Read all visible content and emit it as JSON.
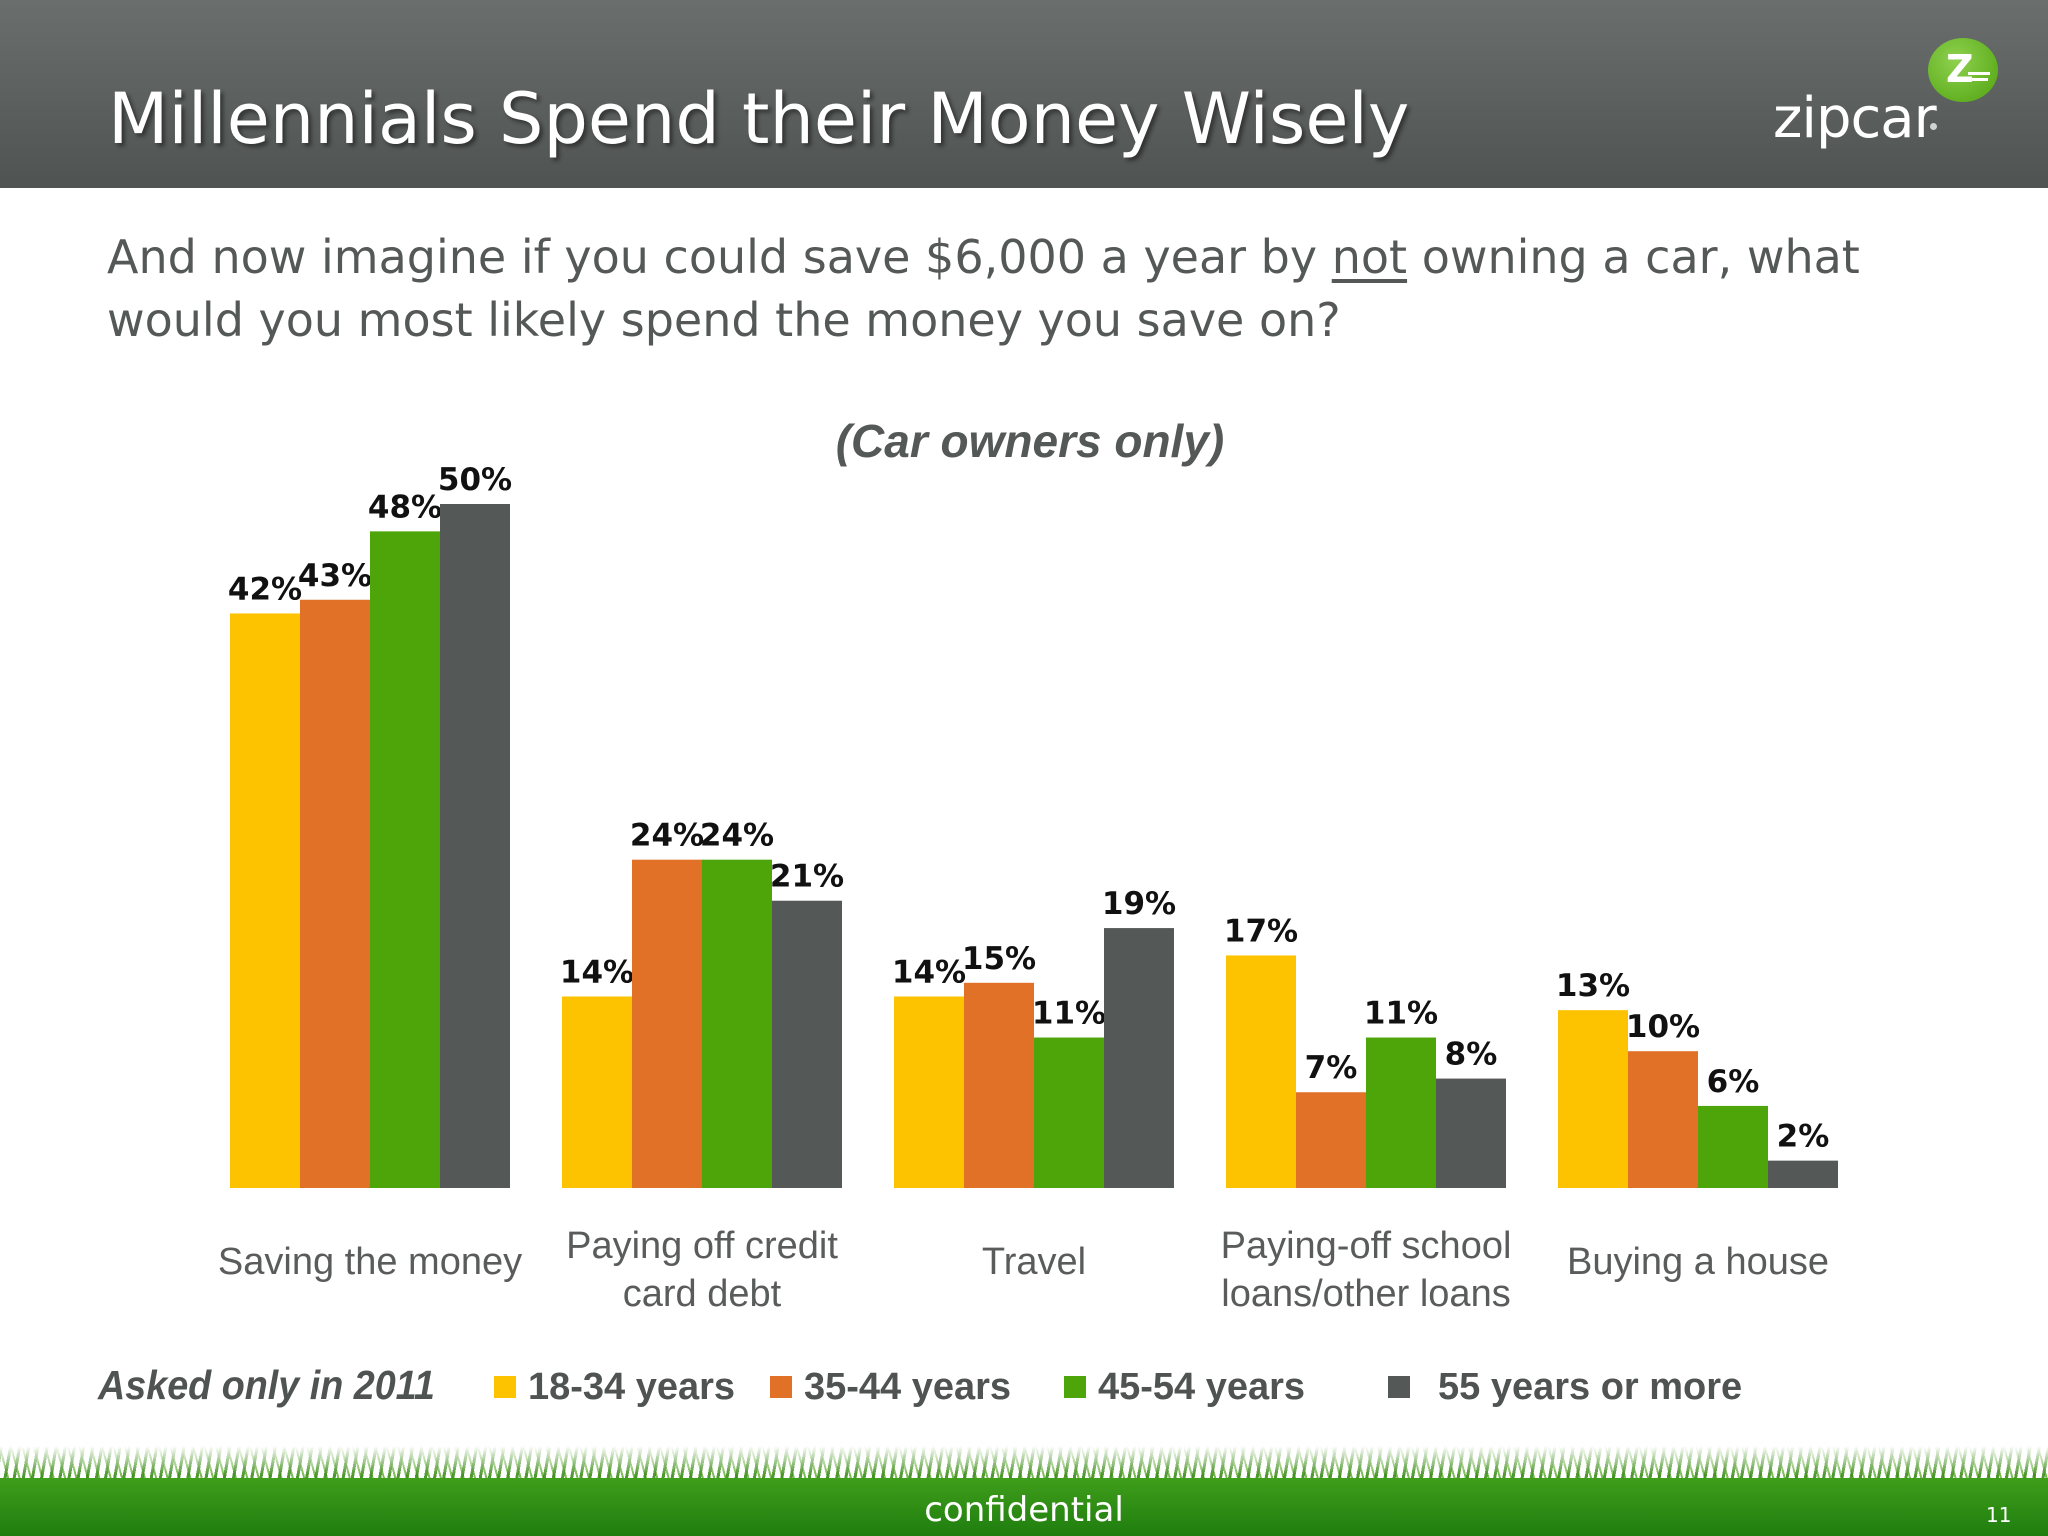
{
  "slide": {
    "title": "Millennials Spend their Money Wisely",
    "question_part1": "And now imagine if you could save $6,000 a year by ",
    "question_underlined": "not",
    "question_part2": " owning a car, what would you most likely spend the money you save on?",
    "note": "Asked only in 2011",
    "footer": "confidential",
    "page_number": "11"
  },
  "logo": {
    "text": "zipcar",
    "badge_letter": "Z"
  },
  "chart_data": {
    "type": "bar",
    "subtitle": "(Car owners only)",
    "categories": [
      "Saving the money",
      "Paying off credit card debt",
      "Travel",
      "Paying-off school loans/other loans",
      "Buying a house"
    ],
    "category_lines": [
      [
        "Saving the money"
      ],
      [
        "Paying off credit",
        "card debt"
      ],
      [
        "Travel"
      ],
      [
        "Paying-off school",
        "loans/other loans"
      ],
      [
        "Buying a house"
      ]
    ],
    "series": [
      {
        "name": "18-34 years",
        "color": "#FDC300",
        "values": [
          42,
          14,
          14,
          17,
          13
        ]
      },
      {
        "name": "35-44 years",
        "color": "#E07126",
        "values": [
          43,
          24,
          15,
          7,
          10
        ]
      },
      {
        "name": "45-54 years",
        "color": "#4EA50A",
        "values": [
          48,
          24,
          11,
          11,
          6
        ]
      },
      {
        "name": "55 years or more",
        "color": "#545857",
        "values": [
          50,
          21,
          19,
          8,
          2
        ]
      }
    ],
    "value_suffix": "%",
    "ylim": [
      0,
      50
    ],
    "legend_position": "bottom",
    "grid": false
  }
}
